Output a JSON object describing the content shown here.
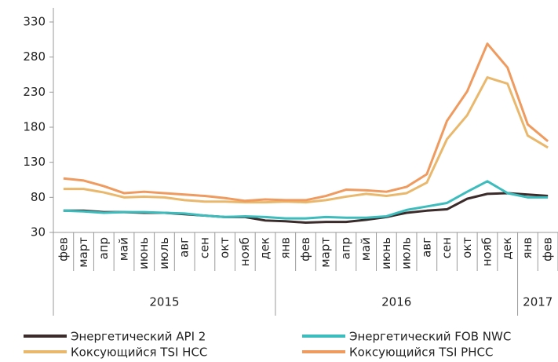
{
  "chart_data": {
    "type": "line",
    "categories": [
      "фев",
      "март",
      "апр",
      "май",
      "июнь",
      "июль",
      "авг",
      "сен",
      "окт",
      "нояб",
      "дек",
      "янв",
      "фев",
      "март",
      "апр",
      "май",
      "июнь",
      "июль",
      "авг",
      "сен",
      "окт",
      "нояб",
      "дек",
      "янв",
      "фев"
    ],
    "groups": [
      {
        "label": "2015",
        "span": 11
      },
      {
        "label": "2016",
        "span": 12
      },
      {
        "label": "2017",
        "span": 2
      }
    ],
    "series": [
      {
        "name": "Энергетический API 2",
        "color": "#3b2b2b",
        "values": [
          61,
          61,
          59,
          59,
          58,
          58,
          56,
          54,
          52,
          52,
          47,
          46,
          44,
          45,
          45,
          48,
          52,
          58,
          61,
          63,
          78,
          85,
          86,
          84,
          82
        ]
      },
      {
        "name": "Энергетический FOB NWC",
        "color": "#3cbcbc",
        "values": [
          61,
          60,
          58,
          59,
          59,
          58,
          57,
          54,
          52,
          53,
          52,
          50,
          50,
          52,
          51,
          51,
          53,
          62,
          67,
          72,
          88,
          103,
          86,
          80,
          80
        ]
      },
      {
        "name": "Коксующийся TSI HCC",
        "color": "#e9b86c",
        "values": [
          92,
          92,
          87,
          80,
          81,
          80,
          76,
          74,
          74,
          73,
          73,
          74,
          73,
          76,
          81,
          85,
          82,
          86,
          101,
          163,
          197,
          251,
          242,
          168,
          151
        ]
      },
      {
        "name": "Коксующийся TSI PHCC",
        "color": "#ef9a5e",
        "values": [
          107,
          104,
          96,
          86,
          88,
          86,
          84,
          82,
          79,
          75,
          77,
          76,
          76,
          82,
          91,
          90,
          88,
          95,
          113,
          189,
          231,
          299,
          265,
          184,
          160
        ]
      }
    ],
    "ylim": [
      30,
      330
    ],
    "yticks": [
      30,
      80,
      130,
      180,
      230,
      280,
      330
    ]
  }
}
